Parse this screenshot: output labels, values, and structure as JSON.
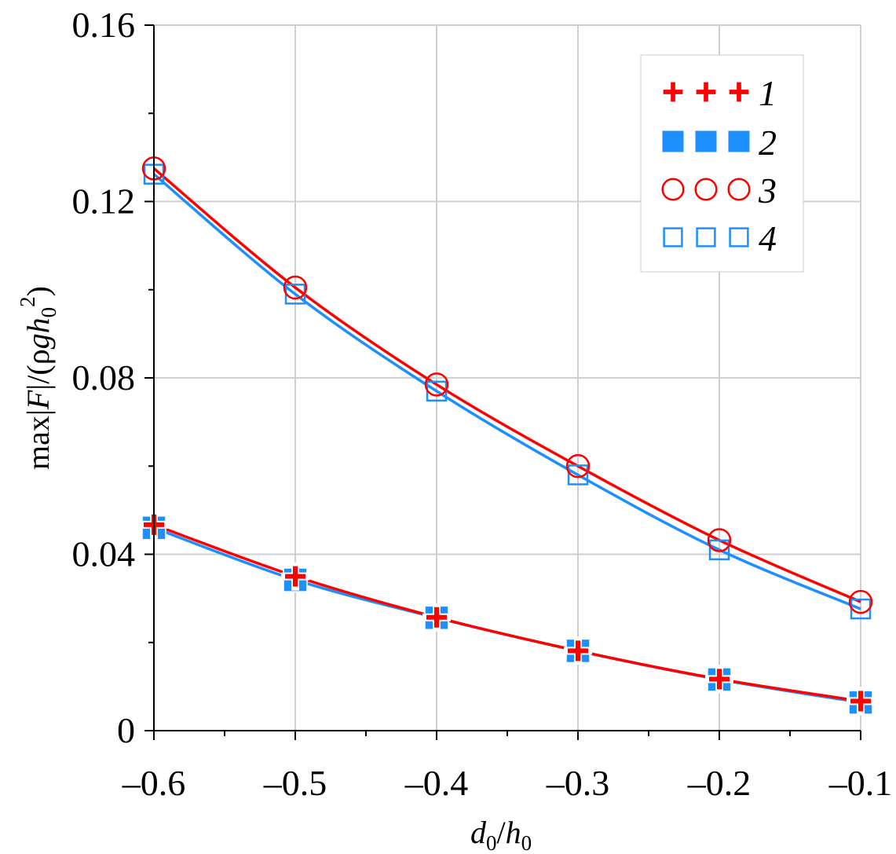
{
  "chart_data": {
    "type": "line",
    "title": "",
    "xlabel": {
      "base1": "d",
      "sub1": "0",
      "sep": "/",
      "base2": "h",
      "sub2": "0"
    },
    "ylabel": {
      "pre": "max|",
      "var": "F",
      "mid": "|/(ρ",
      "g": "g",
      "h": "h",
      "sub": "0",
      "sup": "2",
      "post": ")"
    },
    "xlim": [
      -0.6,
      -0.1
    ],
    "ylim": [
      0,
      0.16
    ],
    "x_ticks": [
      -0.6,
      -0.5,
      -0.4,
      -0.3,
      -0.2,
      -0.1
    ],
    "x_tick_labels": [
      "–0.6",
      "–0.5",
      "–0.4",
      "–0.3",
      "–0.2",
      "–0.1"
    ],
    "y_ticks": [
      0,
      0.04,
      0.08,
      0.12,
      0.16
    ],
    "y_tick_labels": [
      "0",
      "0.04",
      "0.08",
      "0.12",
      "0.16"
    ],
    "grid": true,
    "legend_position": "top-right",
    "x": [
      -0.6,
      -0.5,
      -0.4,
      -0.3,
      -0.2,
      -0.1
    ],
    "series": [
      {
        "name": "1",
        "marker": "plus",
        "color": "#ff0000",
        "line": true,
        "values": [
          0.0467,
          0.035,
          0.0257,
          0.0181,
          0.0117,
          0.0067
        ]
      },
      {
        "name": "2",
        "marker": "filled-square",
        "color": "#1e8fff",
        "line": true,
        "values": [
          0.046,
          0.0342,
          0.0256,
          0.0181,
          0.0116,
          0.0064
        ]
      },
      {
        "name": "3",
        "marker": "open-circle",
        "color": "#ff0000",
        "line": true,
        "values": [
          0.1275,
          0.1005,
          0.0785,
          0.06,
          0.0432,
          0.0292
        ]
      },
      {
        "name": "4",
        "marker": "open-square",
        "color": "#1e8fff",
        "line": true,
        "values": [
          0.1262,
          0.099,
          0.077,
          0.058,
          0.041,
          0.0276
        ]
      }
    ]
  }
}
